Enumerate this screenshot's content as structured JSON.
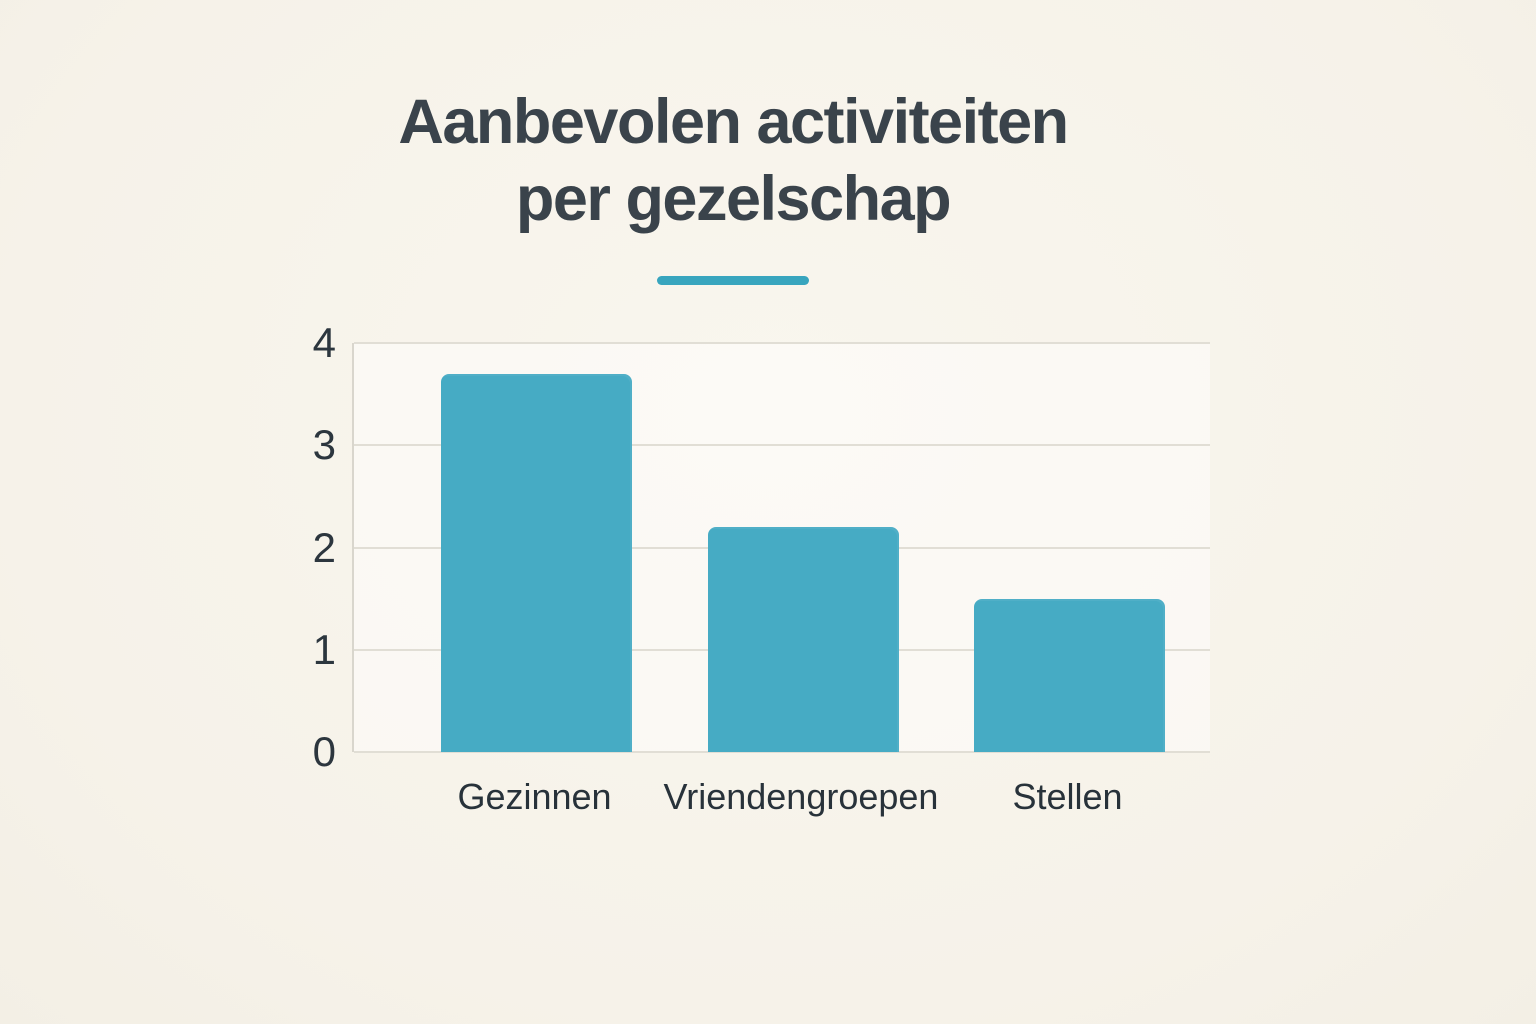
{
  "page": {
    "background_color": "#f7f3eb",
    "accent_color": "#38a5be"
  },
  "header": {
    "title_lines": [
      "Aanbevolen activiteiten",
      "per gezelschap"
    ],
    "title_color": "#3a434b"
  },
  "chart_data": {
    "type": "bar",
    "title": "Aanbevolen activiteiten per gezelschap",
    "categories": [
      "Gezinnen",
      "Vriendengroepen",
      "Stellen"
    ],
    "values": [
      3.7,
      2.2,
      1.5
    ],
    "xlabel": "",
    "ylabel": "",
    "ylim": [
      0,
      4
    ],
    "yticks": [
      0,
      1,
      2,
      3,
      4
    ],
    "grid": true,
    "legend": false,
    "bar_color": "#46abc4",
    "gridline_color": "#e1ded5",
    "axis_line_color": "#d9d6cd",
    "tick_label_color": "#2c363e",
    "category_label_color": "#28323a"
  }
}
